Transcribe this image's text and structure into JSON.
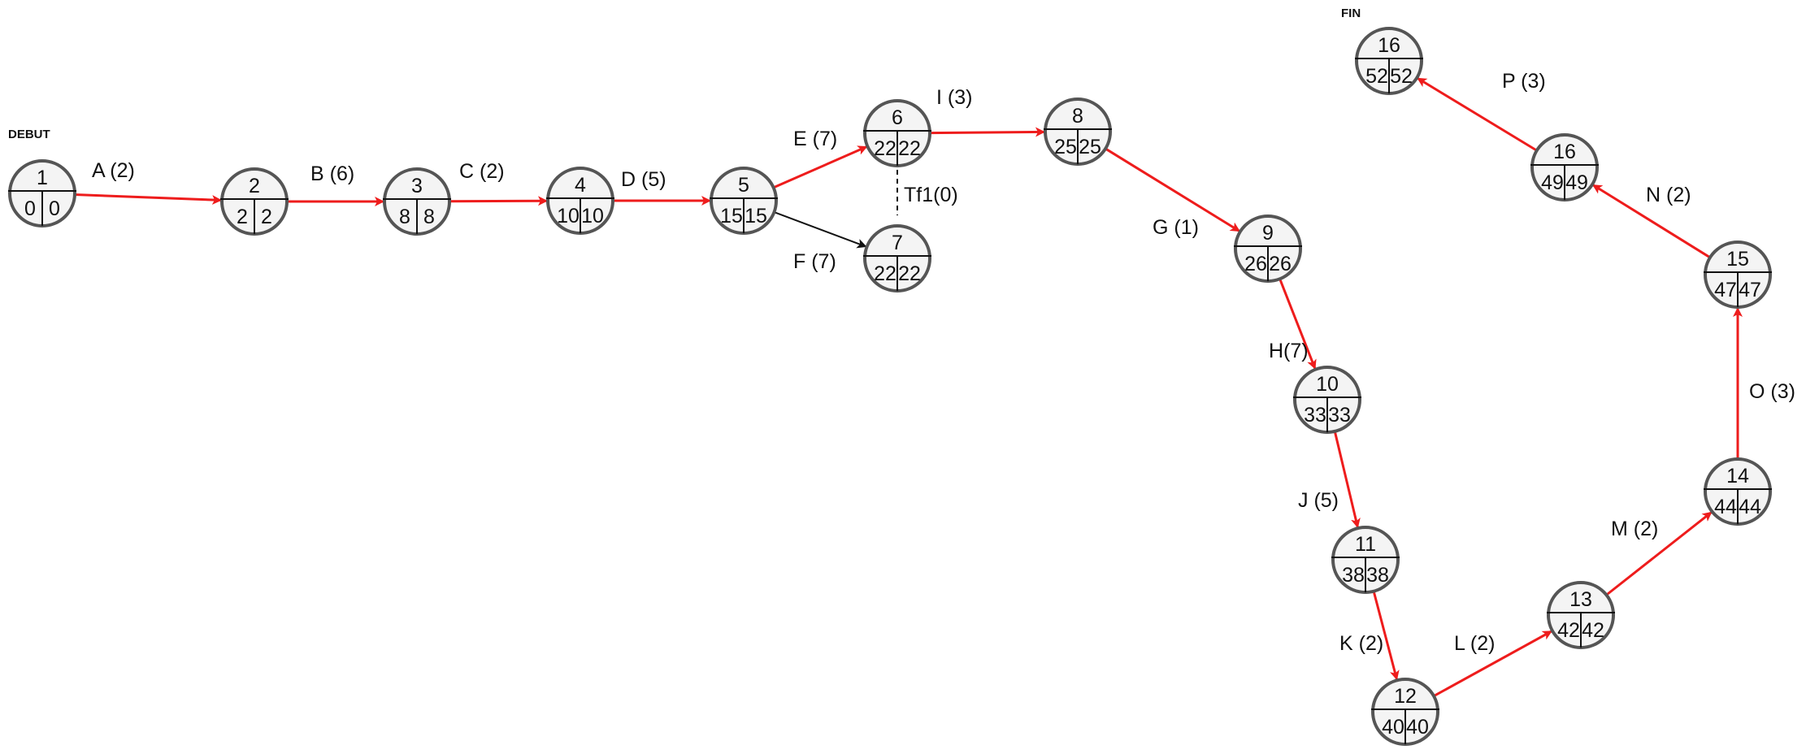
{
  "markers": {
    "start": "DEBUT",
    "finish": "FIN"
  },
  "colors": {
    "critical": "#ee1c1c",
    "normal": "#111111",
    "node_fill": "#f4f4f4",
    "node_stroke": "#555555"
  },
  "nodes": [
    {
      "id": "1",
      "early": "0",
      "late": "0"
    },
    {
      "id": "2",
      "early": "2",
      "late": "2"
    },
    {
      "id": "3",
      "early": "8",
      "late": "8"
    },
    {
      "id": "4",
      "early": "10",
      "late": "10"
    },
    {
      "id": "5",
      "early": "15",
      "late": "15"
    },
    {
      "id": "6",
      "early": "22",
      "late": "22"
    },
    {
      "id": "7",
      "early": "22",
      "late": "22"
    },
    {
      "id": "8",
      "early": "25",
      "late": "25"
    },
    {
      "id": "9",
      "early": "26",
      "late": "26"
    },
    {
      "id": "10",
      "early": "33",
      "late": "33"
    },
    {
      "id": "11",
      "early": "38",
      "late": "38"
    },
    {
      "id": "12",
      "early": "40",
      "late": "40"
    },
    {
      "id": "13",
      "early": "42",
      "late": "42"
    },
    {
      "id": "14",
      "early": "44",
      "late": "44"
    },
    {
      "id": "15",
      "early": "47",
      "late": "47"
    },
    {
      "id": "16",
      "early": "49",
      "late": "49"
    },
    {
      "id": "16",
      "early": "52",
      "late": "52"
    }
  ],
  "edges": [
    {
      "label": "A (2)",
      "critical": true
    },
    {
      "label": "B (6)",
      "critical": true
    },
    {
      "label": "C (2)",
      "critical": true
    },
    {
      "label": "D (5)",
      "critical": true
    },
    {
      "label": "E (7)",
      "critical": true
    },
    {
      "label": "F (7)",
      "critical": false
    },
    {
      "label": "I (3)",
      "critical": true
    },
    {
      "label": "G (1)",
      "critical": true
    },
    {
      "label": "H(7)",
      "critical": true
    },
    {
      "label": "J (5)",
      "critical": true
    },
    {
      "label": "K (2)",
      "critical": true
    },
    {
      "label": "L (2)",
      "critical": true
    },
    {
      "label": "M (2)",
      "critical": true
    },
    {
      "label": "O (3)",
      "critical": true
    },
    {
      "label": "N (2)",
      "critical": true
    },
    {
      "label": "P (3)",
      "critical": true
    }
  ],
  "dummy": {
    "label": "Tf1(0)"
  }
}
